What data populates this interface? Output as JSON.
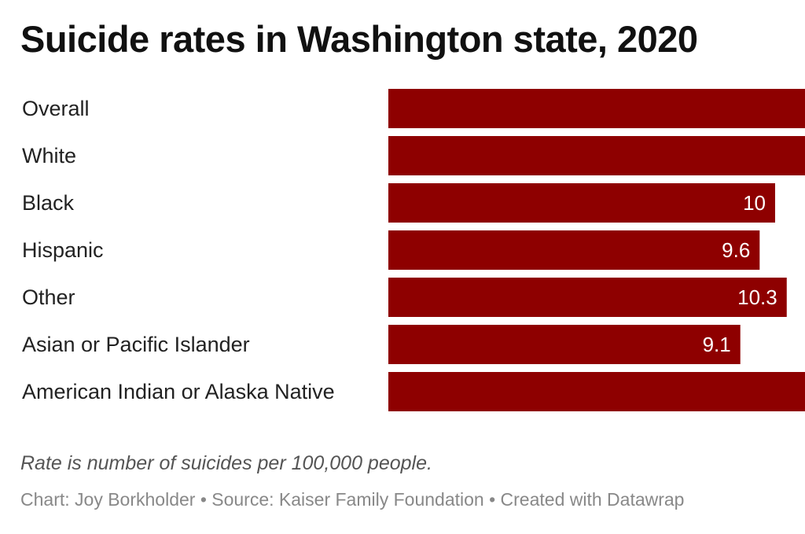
{
  "chart_data": {
    "type": "bar",
    "orientation": "horizontal",
    "title": "Suicide rates in Washington state, 2020",
    "categories": [
      "Overall",
      "White",
      "Black",
      "Hispanic",
      "Other",
      "Asian or Pacific Islander",
      "American Indian or Alaska Native"
    ],
    "values": [
      null,
      null,
      10,
      9.6,
      10.3,
      9.1,
      null
    ],
    "value_labels": [
      "",
      "",
      "10",
      "9.6",
      "10.3",
      "9.1",
      ""
    ],
    "bar_color": "#8e0000",
    "grid": false,
    "legend": "none",
    "note": "Rate is number of suicides per 100,000 people.",
    "credits": "Chart: Joy Borkholder • Source: Kaiser Family Foundation • Created with Datawrap"
  }
}
